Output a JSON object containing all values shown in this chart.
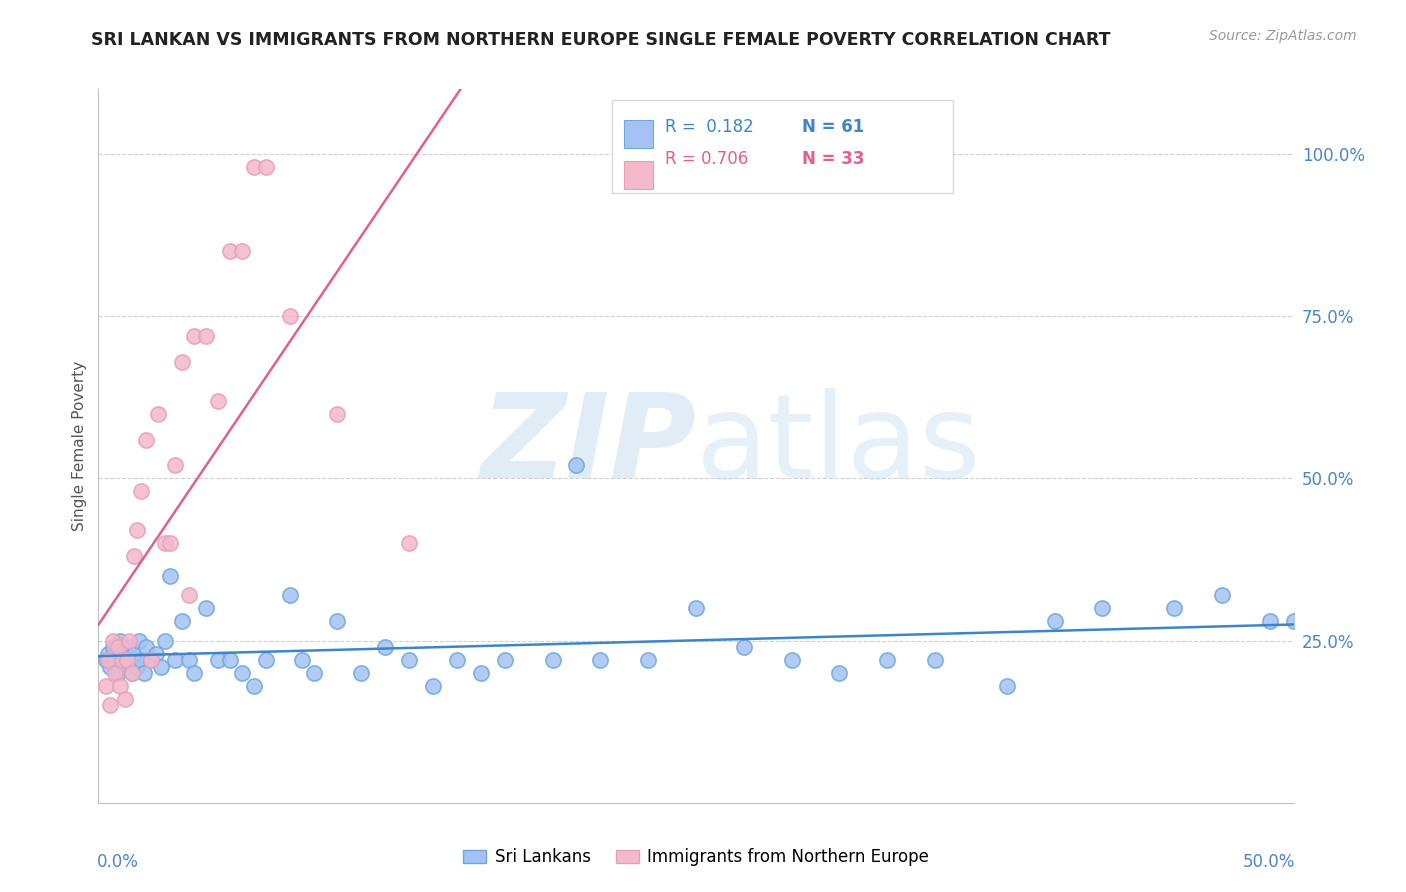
{
  "title": "SRI LANKAN VS IMMIGRANTS FROM NORTHERN EUROPE SINGLE FEMALE POVERTY CORRELATION CHART",
  "source": "Source: ZipAtlas.com",
  "ylabel": "Single Female Poverty",
  "xlim": [
    0.0,
    0.5
  ],
  "ylim": [
    0.0,
    1.1
  ],
  "y_ticks": [
    1.0,
    0.75,
    0.5,
    0.25
  ],
  "y_tick_labels": [
    "100.0%",
    "75.0%",
    "50.0%",
    "25.0%"
  ],
  "legend_r1": "R =  0.182",
  "legend_n1": "N = 61",
  "legend_r2": "R = 0.706",
  "legend_n2": "N = 33",
  "blue_scatter_color": "#a4c2f4",
  "pink_scatter_color": "#f4b8cb",
  "blue_line_color": "#3d85c8",
  "pink_line_color": "#e06090",
  "blue_label": "Sri Lankans",
  "pink_label": "Immigrants from Northern Europe",
  "grid_color": "#d0d0d0",
  "axis_label_color": "#4a86c8",
  "title_color": "#222222",
  "source_color": "#999999",
  "watermark_color": "#cde4f0",
  "background_color": "#ffffff",
  "sl_x": [
    0.003,
    0.004,
    0.005,
    0.006,
    0.007,
    0.008,
    0.009,
    0.01,
    0.011,
    0.012,
    0.013,
    0.014,
    0.015,
    0.016,
    0.017,
    0.018,
    0.019,
    0.02,
    0.022,
    0.024,
    0.026,
    0.028,
    0.03,
    0.032,
    0.035,
    0.038,
    0.04,
    0.045,
    0.05,
    0.055,
    0.06,
    0.065,
    0.07,
    0.08,
    0.085,
    0.09,
    0.1,
    0.11,
    0.12,
    0.13,
    0.14,
    0.15,
    0.16,
    0.17,
    0.19,
    0.2,
    0.21,
    0.23,
    0.25,
    0.27,
    0.29,
    0.31,
    0.33,
    0.35,
    0.38,
    0.4,
    0.42,
    0.45,
    0.47,
    0.49,
    0.5
  ],
  "sl_y": [
    0.22,
    0.23,
    0.21,
    0.24,
    0.22,
    0.2,
    0.25,
    0.23,
    0.21,
    0.22,
    0.24,
    0.2,
    0.23,
    0.21,
    0.25,
    0.22,
    0.2,
    0.24,
    0.22,
    0.23,
    0.21,
    0.25,
    0.35,
    0.22,
    0.28,
    0.22,
    0.2,
    0.3,
    0.22,
    0.22,
    0.2,
    0.18,
    0.22,
    0.32,
    0.22,
    0.2,
    0.28,
    0.2,
    0.24,
    0.22,
    0.18,
    0.22,
    0.2,
    0.22,
    0.22,
    0.52,
    0.22,
    0.22,
    0.3,
    0.24,
    0.22,
    0.2,
    0.22,
    0.22,
    0.18,
    0.28,
    0.3,
    0.3,
    0.32,
    0.28,
    0.28
  ],
  "ne_x": [
    0.003,
    0.004,
    0.005,
    0.006,
    0.007,
    0.008,
    0.009,
    0.01,
    0.011,
    0.012,
    0.013,
    0.014,
    0.015,
    0.016,
    0.018,
    0.02,
    0.022,
    0.025,
    0.028,
    0.03,
    0.032,
    0.035,
    0.038,
    0.04,
    0.045,
    0.05,
    0.055,
    0.06,
    0.065,
    0.07,
    0.08,
    0.1,
    0.13
  ],
  "ne_y": [
    0.18,
    0.22,
    0.15,
    0.25,
    0.2,
    0.24,
    0.18,
    0.22,
    0.16,
    0.22,
    0.25,
    0.2,
    0.38,
    0.42,
    0.48,
    0.56,
    0.22,
    0.6,
    0.4,
    0.4,
    0.52,
    0.68,
    0.32,
    0.72,
    0.72,
    0.62,
    0.85,
    0.85,
    0.98,
    0.98,
    0.75,
    0.6,
    0.4
  ],
  "ne_line_x_start": 0.0,
  "ne_line_x_end": 0.185,
  "sl_line_x_start": 0.0,
  "sl_line_x_end": 0.5
}
